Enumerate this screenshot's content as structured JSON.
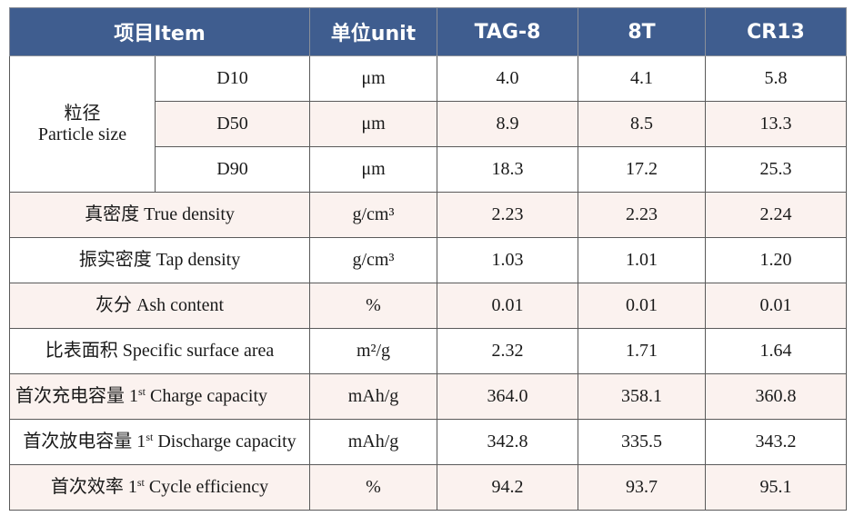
{
  "header": {
    "item_label": "项目Item",
    "unit_label": "单位unit",
    "samples": [
      "TAG-8",
      "8T",
      "CR13"
    ]
  },
  "particle_size": {
    "label_cn": "粒径",
    "label_en": "Particle size",
    "rows": [
      {
        "sub": "D10",
        "unit": "μm",
        "values": [
          "4.0",
          "4.1",
          "5.8"
        ]
      },
      {
        "sub": "D50",
        "unit": "μm",
        "values": [
          "8.9",
          "8.5",
          "13.3"
        ]
      },
      {
        "sub": "D90",
        "unit": "μm",
        "values": [
          "18.3",
          "17.2",
          "25.3"
        ]
      }
    ]
  },
  "rows": [
    {
      "label": "真密度  True density",
      "unit": "g/cm³",
      "values": [
        "2.23",
        "2.23",
        "2.24"
      ]
    },
    {
      "label": "振实密度  Tap density",
      "unit": "g/cm³",
      "values": [
        "1.03",
        "1.01",
        "1.20"
      ]
    },
    {
      "label": "灰分  Ash content",
      "unit": "%",
      "values": [
        "0.01",
        "0.01",
        "0.01"
      ]
    },
    {
      "label": "比表面积  Specific surface area",
      "unit": "m²/g",
      "values": [
        "2.32",
        "1.71",
        "1.64"
      ]
    },
    {
      "label_pre": "首次充电容量  1",
      "label_sup": "st",
      "label_post": " Charge capacity",
      "unit": "mAh/g",
      "values": [
        "364.0",
        "358.1",
        "360.8"
      ]
    },
    {
      "label_pre": "首次放电容量  1",
      "label_sup": "st",
      "label_post": " Discharge capacity",
      "unit": "mAh/g",
      "values": [
        "342.8",
        "335.5",
        "343.2"
      ]
    },
    {
      "label_pre": "首次效率  1",
      "label_sup": "st",
      "label_post": " Cycle efficiency",
      "unit": "%",
      "values": [
        "94.2",
        "93.7",
        "95.1"
      ]
    }
  ]
}
